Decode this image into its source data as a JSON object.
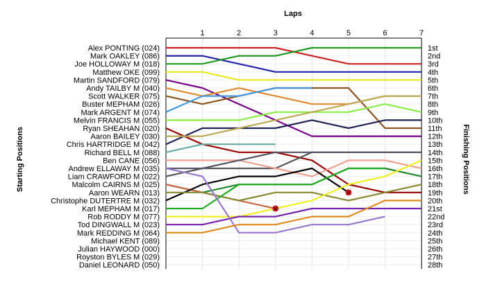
{
  "chart_data": {
    "type": "line",
    "title": "Laps",
    "ylabel_left": "Starting Positions",
    "ylabel_right": "Finishing Positions",
    "laps": [
      "1",
      "2",
      "3",
      "4",
      "5",
      "6",
      "7"
    ],
    "start_labels": [
      "Alex PONTING (024)",
      "Mark OAKLEY (086)",
      "Joe HOLLOWAY    M (018)",
      "Matthew OKE (099)",
      "Martin SANDFORD (079)",
      "Andy TAILBY    M (040)",
      "Scott WALKER (075)",
      "Buster MEPHAM (026)",
      "Mark ARGENT    M (074)",
      "Melvin FRANCIS    M (055)",
      "Ryan SHEAHAN (020)",
      "Aaron BAILEY (030)",
      "Chris HARTRIDGE    M (042)",
      "Richard BELL    M (088)",
      "Ben CANE (056)",
      "Andrew ELLAWAY    M (035)",
      "Liam CRAWFORD    M (022)",
      "Malcolm CAIRNS    M (025)",
      "Aaron WEARN (013)",
      "Christophe DUTERTRE    M (032)",
      "Karl MEPHAM    M (017)",
      "Rob RODDY    M (077)",
      "Tod DINGWALL    M (023)",
      "Mark REDDING    M (064)",
      "Michael KENT (089)",
      "Julian HAYWOOD (000)",
      "Royston BYLES    M (029)",
      "Daniel LEONARD (050)"
    ],
    "finish_labels": [
      "1st",
      "2nd",
      "3rd",
      "4th",
      "5th",
      "6th",
      "7th",
      "8th",
      "9th",
      "10th",
      "11th",
      "12th",
      "13th",
      "14th",
      "15th",
      "16th",
      "17th",
      "18th",
      "19th",
      "20th",
      "21st",
      "22nd",
      "23rd",
      "24th",
      "25th",
      "26th",
      "27th",
      "28th"
    ],
    "series": [
      {
        "color": "#cc2222",
        "positions": [
          1,
          1,
          1,
          1,
          2,
          3,
          3,
          3
        ]
      },
      {
        "color": "#2222aa",
        "positions": [
          2,
          2,
          3,
          4,
          4,
          4,
          4,
          4
        ]
      },
      {
        "color": "#229922",
        "positions": [
          3,
          3,
          2,
          2,
          1,
          1,
          1,
          1
        ]
      },
      {
        "color": "#e8e820",
        "positions": [
          4,
          4,
          5,
          5,
          5,
          5,
          5,
          5
        ]
      },
      {
        "color": "#770088",
        "positions": [
          5,
          6,
          8,
          10,
          12,
          12,
          12,
          12
        ]
      },
      {
        "color": "#e08a30",
        "positions": [
          6,
          7,
          6,
          7,
          8,
          8,
          7,
          7
        ]
      },
      {
        "color": "#8a5520",
        "positions": [
          7,
          8,
          7,
          6,
          6,
          6,
          11,
          11
        ]
      },
      {
        "color": "#4499dd",
        "positions": [
          9,
          7,
          7,
          6,
          6
        ]
      },
      {
        "color": "#88ee44",
        "positions": [
          10,
          10,
          10,
          9,
          9,
          9,
          8,
          9
        ]
      },
      {
        "color": "#222255",
        "positions": [
          13,
          11,
          11,
          11,
          10,
          11,
          10,
          10
        ]
      },
      {
        "color": "#990000",
        "positions": [
          11,
          13,
          14,
          14,
          15,
          18,
          19,
          19
        ]
      },
      {
        "color": "#bbaa55",
        "positions": [
          12,
          12,
          11,
          10,
          9,
          8,
          7,
          7
        ]
      },
      {
        "color": "#66aaa0",
        "positions": [
          14,
          13,
          13,
          13
        ]
      },
      {
        "color": "#555555",
        "positions": [
          17,
          16,
          16,
          16,
          14,
          14,
          14,
          14
        ]
      },
      {
        "color": "#f0a090",
        "positions": [
          15,
          15,
          15,
          16,
          17,
          15,
          15,
          16
        ]
      },
      {
        "color": "#555566",
        "positions": [
          16,
          16,
          15,
          14,
          14,
          14,
          14,
          14
        ]
      },
      {
        "color": "#228833",
        "positions": [
          18,
          19,
          18,
          18,
          18,
          16,
          16,
          17
        ]
      },
      {
        "color": "#cc6644",
        "positions": [
          18,
          19,
          20,
          21
        ],
        "marker": "x"
      },
      {
        "color": "#000000",
        "positions": [
          20,
          18,
          17,
          17,
          16,
          19
        ],
        "marker": "x"
      },
      {
        "color": "#888833",
        "positions": [
          19,
          19,
          20,
          19,
          19,
          20,
          19,
          18
        ]
      },
      {
        "color": "#22aa22",
        "positions": [
          21,
          21,
          18,
          18,
          18,
          16,
          16
        ]
      },
      {
        "color": "#f0f020",
        "positions": [
          22,
          22,
          22,
          21,
          20,
          18,
          17,
          15
        ]
      },
      {
        "color": "#7722aa",
        "positions": [
          23,
          23,
          22,
          22,
          21,
          21,
          21,
          21
        ]
      },
      {
        "color": "#9977cc",
        "positions": [
          16,
          17,
          24,
          24,
          23,
          23,
          22
        ]
      },
      {
        "color": "#e08a20",
        "positions": [
          24,
          24,
          23,
          23,
          22,
          22,
          20,
          20
        ]
      }
    ]
  }
}
